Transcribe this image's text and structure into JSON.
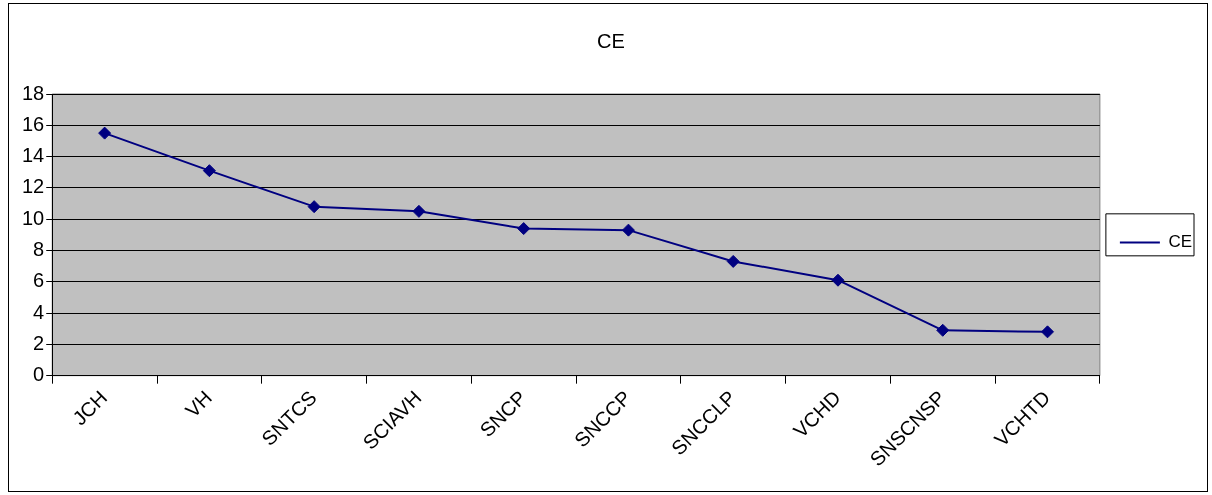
{
  "chart_data": {
    "type": "line",
    "title": "CE",
    "categories": [
      "JCH",
      "VH",
      "SNTCS",
      "SCIAVH",
      "SNCP",
      "SNCCP",
      "SNCCLP",
      "VCHD",
      "SNSCNSP",
      "VCHTD"
    ],
    "series": [
      {
        "name": "CE",
        "color": "#000080",
        "values": [
          15.5,
          13.1,
          10.8,
          10.5,
          9.4,
          9.3,
          7.3,
          6.1,
          2.9,
          2.8
        ]
      }
    ],
    "ylim": [
      0,
      18
    ],
    "yticks": [
      0,
      2,
      4,
      6,
      8,
      10,
      12,
      14,
      16,
      18
    ],
    "grid": "y",
    "legend": "right",
    "marker": "diamond",
    "line_style": "solid"
  }
}
